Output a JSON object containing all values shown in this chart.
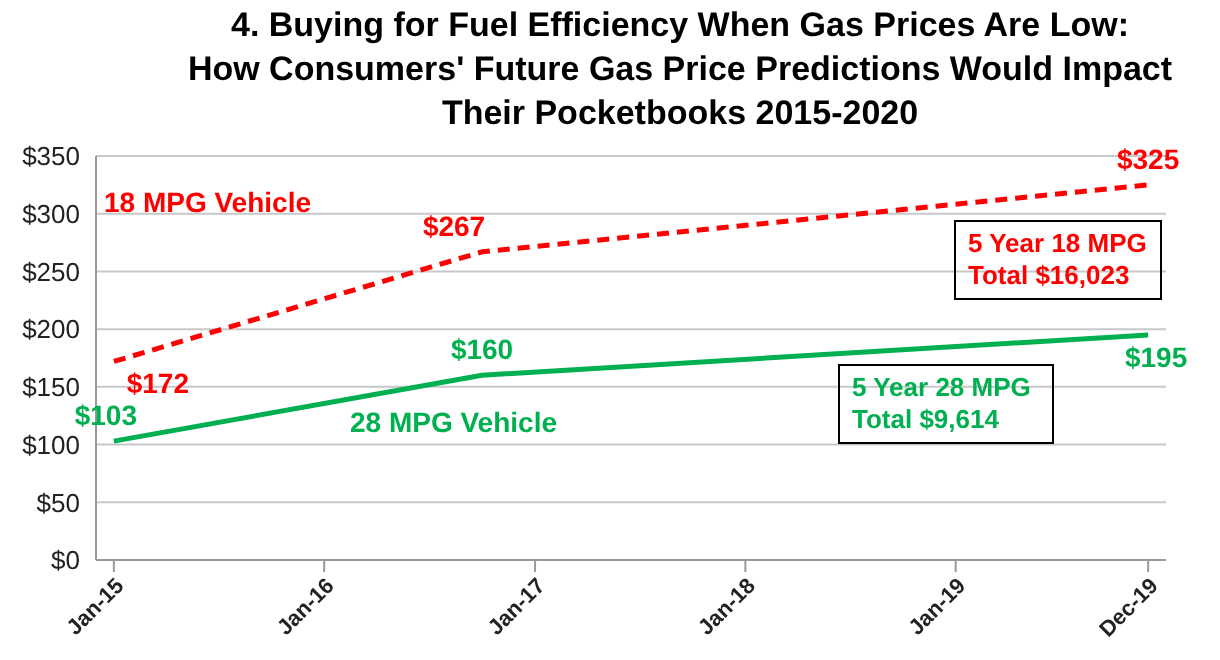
{
  "chart_data": {
    "type": "line",
    "title": "4. Buying for Fuel Efficiency When Gas Prices Are Low:\nHow Consumers' Future Gas Price Predictions Would Impact\nTheir Pocketbooks 2015-2020",
    "x": [
      "2015-01",
      "2016-10",
      "2019-12"
    ],
    "series": [
      {
        "name": "18 MPG Vehicle",
        "color": "#ff0000",
        "values": [
          172,
          267,
          325
        ],
        "value_labels": [
          "$172",
          "$267",
          "$325"
        ],
        "line_style": "dashed"
      },
      {
        "name": "28 MPG Vehicle",
        "color": "#00b050",
        "values": [
          103,
          160,
          195
        ],
        "value_labels": [
          "$103",
          "$160",
          "$195"
        ],
        "line_style": "solid"
      }
    ],
    "annotations": [
      "5 Year 18 MPG\nTotal $16,023",
      "5 Year 28 MPG\nTotal $9,614"
    ],
    "xlim": [
      "2014-12",
      "2020-01"
    ],
    "xticks": [
      {
        "value": "2015-01",
        "label": "Jan-15"
      },
      {
        "value": "2016-01",
        "label": "Jan-16"
      },
      {
        "value": "2017-01",
        "label": "Jan-17"
      },
      {
        "value": "2018-01",
        "label": "Jan-18"
      },
      {
        "value": "2019-01",
        "label": "Jan-19"
      },
      {
        "value": "2019-12",
        "label": "Dec-19"
      }
    ],
    "ylim": [
      0,
      350
    ],
    "yticks": [
      {
        "value": 0,
        "label": "$0"
      },
      {
        "value": 50,
        "label": "$50"
      },
      {
        "value": 100,
        "label": "$100"
      },
      {
        "value": 150,
        "label": "$150"
      },
      {
        "value": 200,
        "label": "$200"
      },
      {
        "value": 250,
        "label": "$250"
      },
      {
        "value": 300,
        "label": "$300"
      },
      {
        "value": 350,
        "label": "$350"
      }
    ],
    "grid": "y",
    "marker": "none",
    "legend": false
  }
}
